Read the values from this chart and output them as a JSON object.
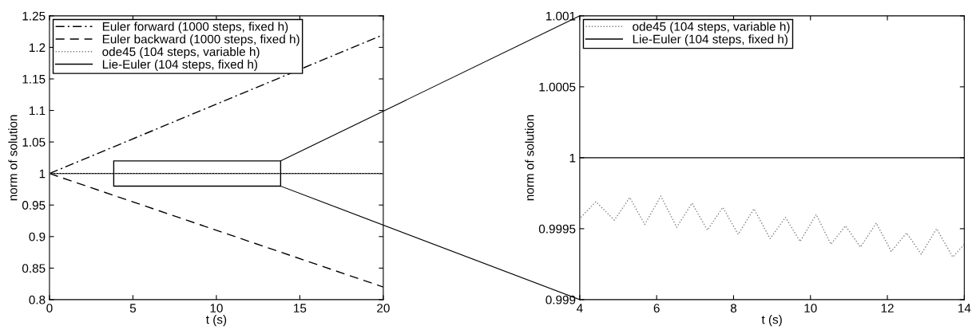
{
  "chart_data": [
    {
      "type": "line",
      "xlabel": "t (s)",
      "ylabel": "norm of solution",
      "xlim": [
        0,
        20
      ],
      "ylim": [
        0.8,
        1.25
      ],
      "xticks": [
        0,
        5,
        10,
        15,
        20
      ],
      "yticks": [
        0.8,
        0.85,
        0.9,
        0.95,
        1,
        1.05,
        1.1,
        1.15,
        1.2,
        1.25
      ],
      "grid": false,
      "legend": "top left",
      "marker": "none",
      "series": [
        {
          "name": "Euler forward (1000 steps, fixed h)",
          "color": "#000000",
          "line_style": "dashdot",
          "x": [
            0,
            20
          ],
          "values": [
            1,
            1.22
          ]
        },
        {
          "name": "Euler backward (1000 steps, fixed h)",
          "color": "#000000",
          "line_style": "dashed",
          "x": [
            0,
            20
          ],
          "values": [
            1,
            0.82
          ]
        },
        {
          "name": "ode45 (104 steps, variable h)",
          "color": "#808080",
          "line_style": "dotted",
          "x": [
            0,
            20
          ],
          "values": [
            1,
            1
          ]
        },
        {
          "name": "Lie-Euler (104 steps, fixed h)",
          "color": "#000000",
          "line_style": "solid",
          "x": [
            0,
            20
          ],
          "values": [
            1,
            1
          ]
        }
      ]
    },
    {
      "type": "line",
      "xlabel": "t (s)",
      "ylabel": "norm of solution",
      "xlim": [
        4,
        14
      ],
      "ylim": [
        0.999,
        1.001
      ],
      "xticks": [
        4,
        6,
        8,
        10,
        12,
        14
      ],
      "yticks": [
        0.999,
        0.9995,
        1,
        1.0005,
        1.001
      ],
      "grid": false,
      "legend": "top left",
      "marker": "none",
      "series": [
        {
          "name": "ode45 (104 steps, variable h)",
          "color": "#808080",
          "line_style": "dotted",
          "x": [
            4.03,
            4.42,
            4.9,
            5.3,
            5.69,
            6.11,
            6.52,
            6.92,
            7.32,
            7.72,
            8.12,
            8.53,
            8.95,
            9.35,
            9.73,
            10.15,
            10.53,
            10.91,
            11.3,
            11.71,
            12.1,
            12.5,
            12.88,
            13.28,
            13.7,
            14.0
          ],
          "values": [
            0.99958,
            0.99969,
            0.99956,
            0.99972,
            0.99953,
            0.99973,
            0.99951,
            0.99968,
            0.99949,
            0.99965,
            0.99946,
            0.99964,
            0.99943,
            0.99958,
            0.99941,
            0.9996,
            0.99939,
            0.99952,
            0.99937,
            0.99954,
            0.99934,
            0.99947,
            0.99932,
            0.9995,
            0.9993,
            0.99939
          ]
        },
        {
          "name": "Lie-Euler (104 steps, fixed h)",
          "color": "#000000",
          "line_style": "solid",
          "x": [
            4,
            14
          ],
          "values": [
            1,
            1
          ]
        }
      ]
    }
  ]
}
